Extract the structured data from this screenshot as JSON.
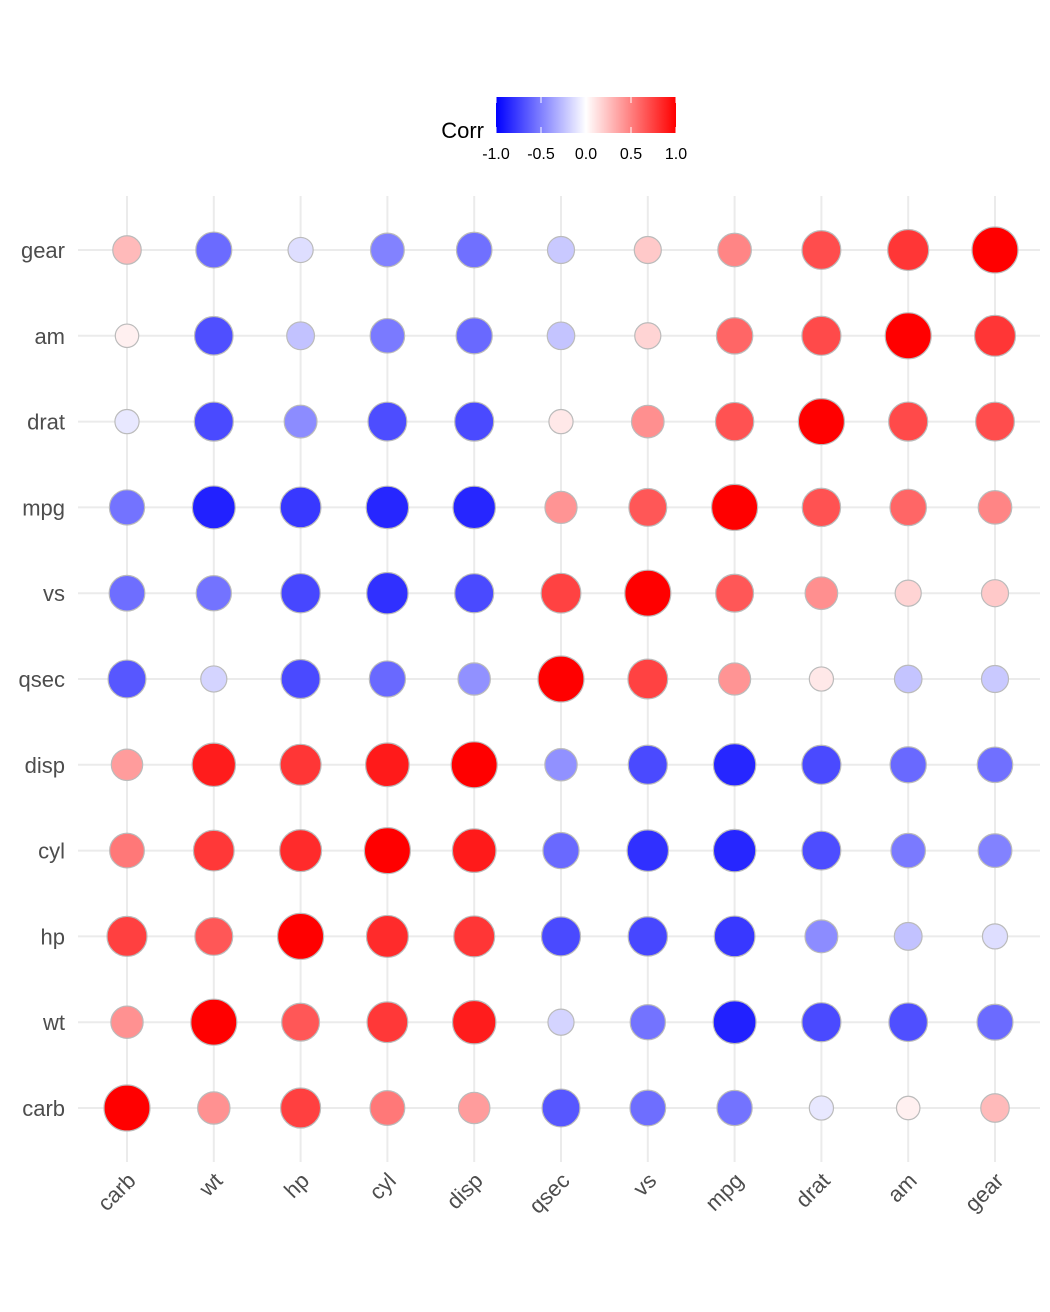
{
  "chart_data": {
    "type": "heatmap",
    "shape": "circle",
    "variables": [
      "carb",
      "wt",
      "hp",
      "cyl",
      "disp",
      "qsec",
      "vs",
      "mpg",
      "drat",
      "am",
      "gear"
    ],
    "x_categories": [
      "carb",
      "wt",
      "hp",
      "cyl",
      "disp",
      "qsec",
      "vs",
      "mpg",
      "drat",
      "am",
      "gear"
    ],
    "y_categories_bottom_to_top": [
      "carb",
      "wt",
      "hp",
      "cyl",
      "disp",
      "qsec",
      "vs",
      "mpg",
      "drat",
      "am",
      "gear"
    ],
    "matrix": [
      [
        1.0,
        0.43,
        0.75,
        0.53,
        0.39,
        -0.66,
        -0.57,
        -0.55,
        -0.09,
        0.06,
        0.27
      ],
      [
        0.43,
        1.0,
        0.66,
        0.78,
        0.89,
        -0.17,
        -0.55,
        -0.87,
        -0.71,
        -0.69,
        -0.58
      ],
      [
        0.75,
        0.66,
        1.0,
        0.83,
        0.79,
        -0.71,
        -0.72,
        -0.78,
        -0.45,
        -0.24,
        -0.13
      ],
      [
        0.53,
        0.78,
        0.83,
        1.0,
        0.9,
        -0.59,
        -0.81,
        -0.85,
        -0.7,
        -0.52,
        -0.49
      ],
      [
        0.39,
        0.89,
        0.79,
        0.9,
        1.0,
        -0.43,
        -0.71,
        -0.85,
        -0.71,
        -0.59,
        -0.56
      ],
      [
        -0.66,
        -0.17,
        -0.71,
        -0.59,
        -0.43,
        1.0,
        0.74,
        0.42,
        0.09,
        -0.23,
        -0.21
      ],
      [
        -0.57,
        -0.55,
        -0.72,
        -0.81,
        -0.71,
        0.74,
        1.0,
        0.66,
        0.44,
        0.17,
        0.21
      ],
      [
        -0.55,
        -0.87,
        -0.78,
        -0.85,
        -0.85,
        0.42,
        0.66,
        1.0,
        0.68,
        0.6,
        0.48
      ],
      [
        -0.09,
        -0.71,
        -0.45,
        -0.7,
        -0.71,
        0.09,
        0.44,
        0.68,
        1.0,
        0.71,
        0.7
      ],
      [
        0.06,
        -0.69,
        -0.24,
        -0.52,
        -0.59,
        -0.23,
        0.17,
        0.6,
        0.71,
        1.0,
        0.79
      ],
      [
        0.27,
        -0.58,
        -0.13,
        -0.49,
        -0.56,
        -0.21,
        0.21,
        0.48,
        0.7,
        0.79,
        1.0
      ]
    ],
    "legend": {
      "title": "Corr",
      "position": "top",
      "ticks": [
        "-1.0",
        "-0.5",
        "0.0",
        "0.5",
        "1.0"
      ],
      "tick_values": [
        -1.0,
        -0.5,
        0.0,
        0.5,
        1.0
      ],
      "low_color": "#0000FF",
      "mid_color": "#FFFFFF",
      "high_color": "#FF0000",
      "limits": [
        -1,
        1
      ]
    },
    "grid": true,
    "outline_color": "#bbbbbb"
  }
}
